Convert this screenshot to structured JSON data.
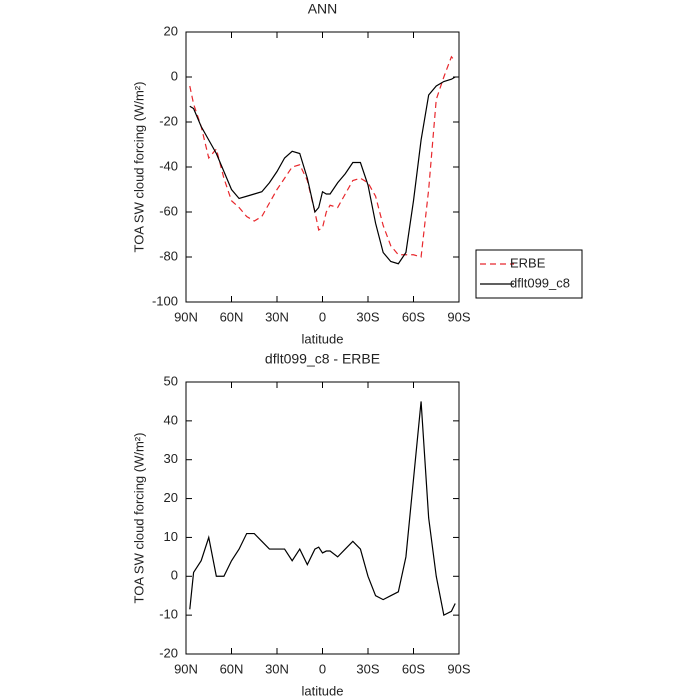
{
  "chart_data": [
    {
      "type": "line",
      "title": "ANN",
      "x_label": "latitude",
      "y_label": "TOA SW cloud forcing (W/m²)",
      "x": [
        87.5,
        85,
        80,
        75,
        70,
        65,
        60,
        55,
        50,
        45,
        40,
        35,
        30,
        25,
        20,
        15,
        10,
        5,
        2.5,
        0,
        -2.5,
        -5,
        -10,
        -15,
        -20,
        -25,
        -30,
        -35,
        -40,
        -45,
        -50,
        -55,
        -60,
        -65,
        -70,
        -75,
        -80,
        -85,
        -87.5
      ],
      "series": [
        {
          "name": "ERBE",
          "color": "#e8282d",
          "dash": true,
          "values": [
            -4,
            -12,
            -22,
            -36,
            -32,
            -45,
            -55,
            -58,
            -62,
            -64,
            -62,
            -56,
            -50,
            -45,
            -40,
            -39,
            -46,
            -60,
            -68,
            -67,
            -60,
            -57,
            -58,
            -52,
            -46,
            -45,
            -47,
            -53,
            -66,
            -75,
            -79,
            -79,
            -79,
            -80,
            -50,
            -10,
            0,
            9,
            7
          ]
        },
        {
          "name": "dflt099_c8",
          "color": "#000000",
          "dash": false,
          "values": [
            -13,
            -14,
            -22,
            -28,
            -34,
            -42,
            -50,
            -54,
            -53,
            -52,
            -51,
            -47,
            -42,
            -36,
            -33,
            -34,
            -45,
            -60,
            -58,
            -51,
            -52,
            -52,
            -47,
            -43,
            -38,
            -38,
            -48,
            -65,
            -78,
            -82,
            -83,
            -78,
            -55,
            -28,
            -8,
            -4,
            -2,
            -1,
            0
          ]
        }
      ],
      "xlim": [
        90,
        -90
      ],
      "xticks": [
        {
          "value": 90,
          "label": "90N"
        },
        {
          "value": 60,
          "label": "60N"
        },
        {
          "value": 30,
          "label": "30N"
        },
        0,
        {
          "value": -30,
          "label": "30S"
        },
        {
          "value": -60,
          "label": "60S"
        },
        {
          "value": -90,
          "label": "90S"
        }
      ],
      "ylim": [
        -100,
        20
      ],
      "yticks": [
        -100,
        -80,
        -60,
        -40,
        -20,
        0,
        20
      ],
      "legend": "right"
    },
    {
      "type": "line",
      "title": "dflt099_c8 - ERBE",
      "x_label": "latitude",
      "y_label": "TOA SW cloud forcing (W/m²)",
      "x": [
        87.5,
        85,
        80,
        75,
        70,
        65,
        60,
        55,
        50,
        45,
        40,
        35,
        30,
        25,
        20,
        15,
        10,
        5,
        2.5,
        0,
        -2.5,
        -5,
        -10,
        -15,
        -20,
        -25,
        -30,
        -35,
        -40,
        -45,
        -50,
        -55,
        -60,
        -65,
        -70,
        -75,
        -80,
        -85,
        -87.5
      ],
      "series": [
        {
          "color": "#000000",
          "dash": false,
          "values": [
            -8.5,
            1,
            4,
            10,
            0,
            0,
            4,
            7,
            11,
            11,
            9,
            7,
            7,
            7,
            4,
            7,
            3,
            7,
            7.5,
            6,
            6.5,
            6.5,
            5,
            7,
            9,
            7,
            0,
            -5,
            -6,
            -5,
            -4,
            5,
            25,
            45,
            15,
            0,
            -10,
            -9,
            -7
          ]
        }
      ],
      "xlim": [
        90,
        -90
      ],
      "xticks": [
        {
          "value": 90,
          "label": "90N"
        },
        {
          "value": 60,
          "label": "60N"
        },
        {
          "value": 30,
          "label": "30N"
        },
        0,
        {
          "value": -30,
          "label": "30S"
        },
        {
          "value": -60,
          "label": "60S"
        },
        {
          "value": -90,
          "label": "90S"
        }
      ],
      "ylim": [
        -20,
        50
      ],
      "yticks": [
        -20,
        -10,
        0,
        10,
        20,
        30,
        40,
        50
      ]
    }
  ]
}
